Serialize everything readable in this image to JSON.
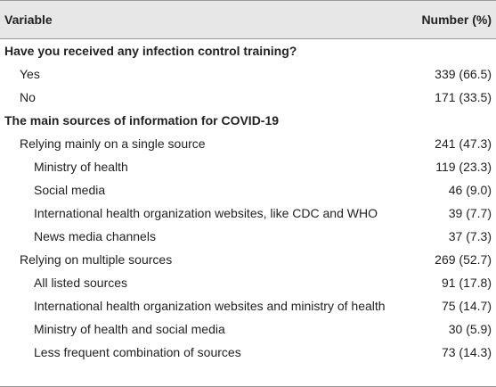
{
  "header": {
    "variable": "Variable",
    "number": "Number (%)"
  },
  "rows": [
    {
      "label": "Have you received any infection control training?"
    },
    {
      "label": "Yes",
      "number": "339 (66.5)"
    },
    {
      "label": "No",
      "number": "171 (33.5)"
    },
    {
      "label": "The main sources of information for COVID-19"
    },
    {
      "label": "Relying mainly on a single source",
      "number": "241 (47.3)"
    },
    {
      "label": "Ministry of health",
      "number": "119 (23.3)"
    },
    {
      "label": "Social media",
      "number": "46 (9.0)"
    },
    {
      "label": "International health organization websites, like CDC and WHO",
      "number": "39 (7.7)"
    },
    {
      "label": "News media channels",
      "number": "37 (7.3)"
    },
    {
      "label": "Relying on multiple sources",
      "number": "269 (52.7)"
    },
    {
      "label": "All listed sources",
      "number": "91 (17.8)"
    },
    {
      "label": "International health organization websites and ministry of health",
      "number": "75 (14.7)"
    },
    {
      "label": "Ministry of health and social media",
      "number": "30 (5.9)"
    },
    {
      "label": "Less frequent combination of sources",
      "number": "73 (14.3)"
    }
  ]
}
